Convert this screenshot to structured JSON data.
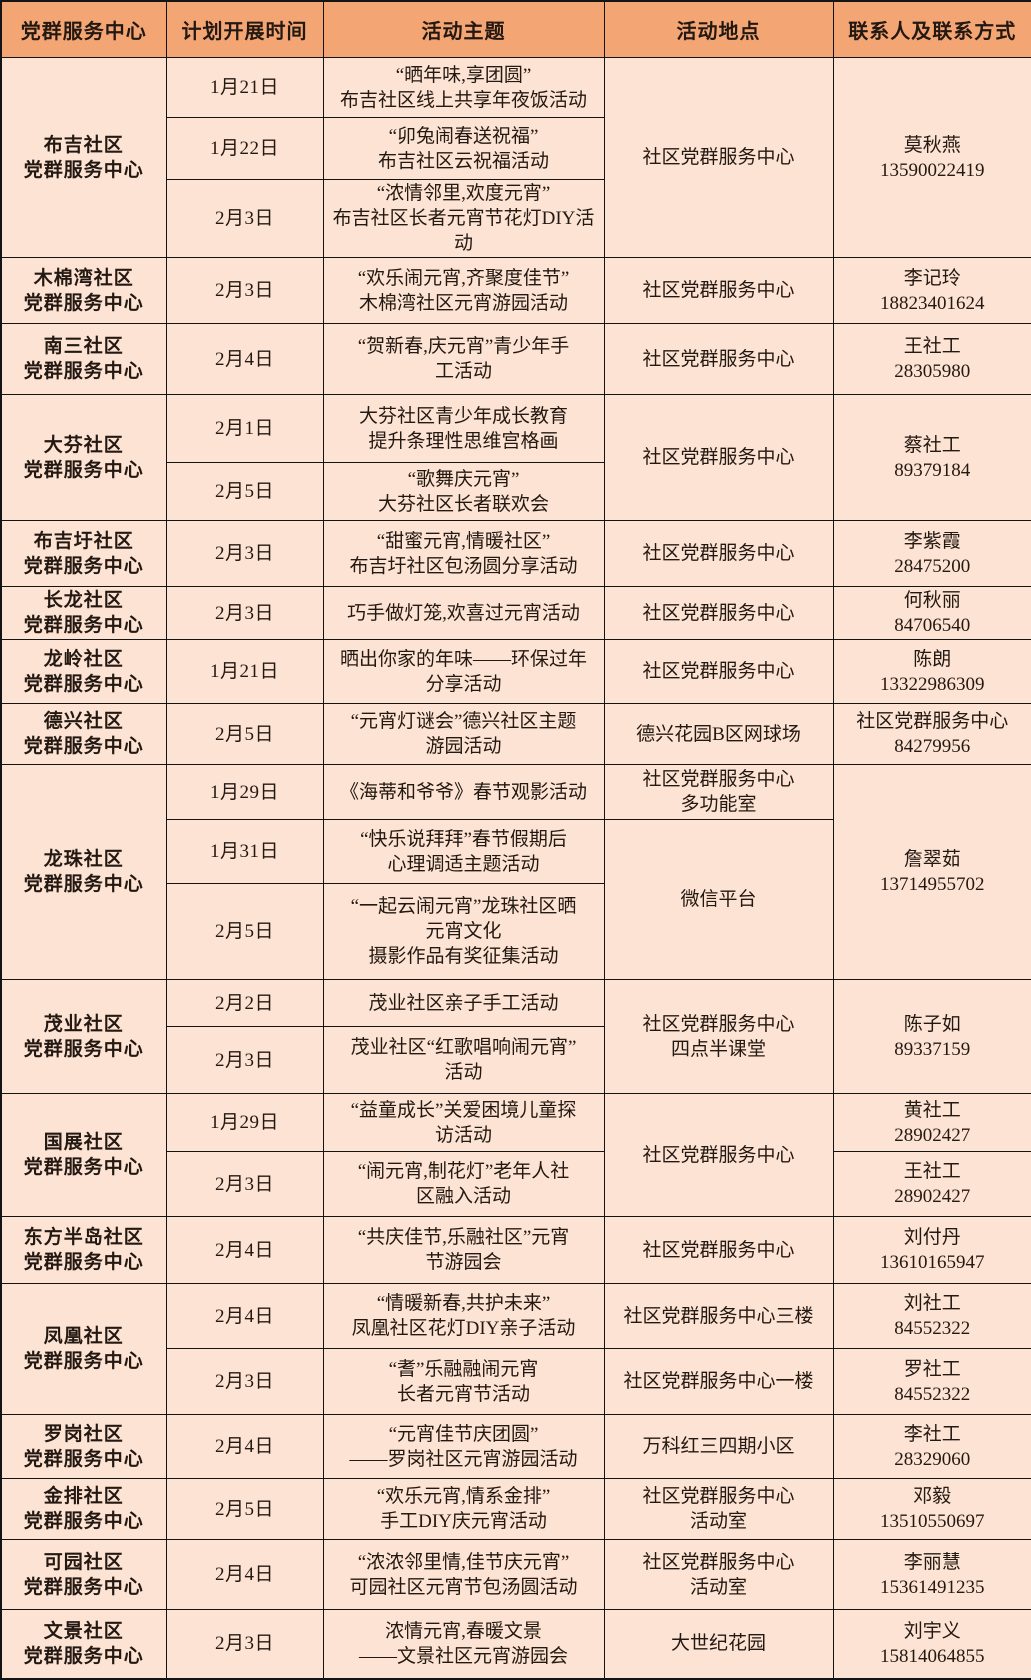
{
  "colors": {
    "header_bg": "#f3a673",
    "body_bg": "#fce3d3",
    "text": "#241812",
    "border": "#141414"
  },
  "table": {
    "header": [
      "党群服务中心",
      "计划开展时间",
      "活动主题",
      "活动地点",
      "联系人及联系方式"
    ],
    "rows": [
      [
        {
          "n": "center",
          "rs": 3,
          "t": "布吉社区\n党群服务中心"
        },
        {
          "n": "date",
          "t": "1月21日"
        },
        {
          "n": "theme",
          "t": "“晒年味,享团圆”\n布吉社区线上共享年夜饭活动"
        },
        {
          "n": "location",
          "rs": 3,
          "t": "社区党群服务中心"
        },
        {
          "n": "contact",
          "rs": 3,
          "t": "莫秋燕\n13590022419"
        }
      ],
      [
        {
          "n": "date",
          "t": "1月22日"
        },
        {
          "n": "theme",
          "t": "“卯兔闹春送祝福”\n布吉社区云祝福活动"
        }
      ],
      [
        {
          "n": "date",
          "t": "2月3日"
        },
        {
          "n": "theme",
          "t": "“浓情邻里,欢度元宵”\n布吉社区长者元宵节花灯DIY活\n动"
        }
      ],
      [
        {
          "n": "center",
          "t": "木棉湾社区\n党群服务中心"
        },
        {
          "n": "date",
          "t": "2月3日"
        },
        {
          "n": "theme",
          "t": "“欢乐闹元宵,齐聚度佳节”\n木棉湾社区元宵游园活动"
        },
        {
          "n": "location",
          "t": "社区党群服务中心"
        },
        {
          "n": "contact",
          "t": "李记玲\n18823401624"
        }
      ],
      [
        {
          "n": "center",
          "t": "南三社区\n党群服务中心"
        },
        {
          "n": "date",
          "t": "2月4日"
        },
        {
          "n": "theme",
          "t": "“贺新春,庆元宵”青少年手\n工活动"
        },
        {
          "n": "location",
          "t": "社区党群服务中心"
        },
        {
          "n": "contact",
          "t": "王社工\n28305980"
        }
      ],
      [
        {
          "n": "center",
          "rs": 2,
          "t": "大芬社区\n党群服务中心"
        },
        {
          "n": "date",
          "t": "2月1日"
        },
        {
          "n": "theme",
          "t": "大芬社区青少年成长教育\n提升条理性思维宫格画"
        },
        {
          "n": "location",
          "rs": 2,
          "t": "社区党群服务中心"
        },
        {
          "n": "contact",
          "rs": 2,
          "t": "蔡社工\n89379184"
        }
      ],
      [
        {
          "n": "date",
          "t": "2月5日"
        },
        {
          "n": "theme",
          "t": "“歌舞庆元宵”\n大芬社区长者联欢会"
        }
      ],
      [
        {
          "n": "center",
          "t": "布吉圩社区\n党群服务中心"
        },
        {
          "n": "date",
          "t": "2月3日"
        },
        {
          "n": "theme",
          "t": "“甜蜜元宵,情暖社区”\n布吉圩社区包汤圆分享活动"
        },
        {
          "n": "location",
          "t": "社区党群服务中心"
        },
        {
          "n": "contact",
          "t": "李紫霞\n28475200"
        }
      ],
      [
        {
          "n": "center",
          "t": "长龙社区\n党群服务中心"
        },
        {
          "n": "date",
          "t": "2月3日"
        },
        {
          "n": "theme",
          "t": "巧手做灯笼,欢喜过元宵活动"
        },
        {
          "n": "location",
          "t": "社区党群服务中心"
        },
        {
          "n": "contact",
          "t": "何秋丽\n84706540"
        }
      ],
      [
        {
          "n": "center",
          "t": "龙岭社区\n党群服务中心"
        },
        {
          "n": "date",
          "t": "1月21日"
        },
        {
          "n": "theme",
          "t": "晒出你家的年味——环保过年\n分享活动"
        },
        {
          "n": "location",
          "t": "社区党群服务中心"
        },
        {
          "n": "contact",
          "t": "陈朗\n13322986309"
        }
      ],
      [
        {
          "n": "center",
          "t": "德兴社区\n党群服务中心"
        },
        {
          "n": "date",
          "t": "2月5日"
        },
        {
          "n": "theme",
          "t": "“元宵灯谜会”德兴社区主题\n游园活动"
        },
        {
          "n": "location",
          "t": "德兴花园B区网球场"
        },
        {
          "n": "contact",
          "t": "社区党群服务中心\n84279956"
        }
      ],
      [
        {
          "n": "center",
          "rs": 3,
          "t": "龙珠社区\n党群服务中心"
        },
        {
          "n": "date",
          "t": "1月29日"
        },
        {
          "n": "theme",
          "t": "《海蒂和爷爷》春节观影活动"
        },
        {
          "n": "location",
          "t": "社区党群服务中心\n多功能室"
        },
        {
          "n": "contact",
          "rs": 3,
          "t": "詹翠茹\n13714955702"
        }
      ],
      [
        {
          "n": "date",
          "t": "1月31日"
        },
        {
          "n": "theme",
          "t": "“快乐说拜拜”春节假期后\n心理调适主题活动"
        },
        {
          "n": "location",
          "rs": 2,
          "t": "微信平台"
        }
      ],
      [
        {
          "n": "date",
          "t": "2月5日"
        },
        {
          "n": "theme",
          "t": "“一起云闹元宵”龙珠社区晒\n元宵文化\n摄影作品有奖征集活动"
        }
      ],
      [
        {
          "n": "center",
          "rs": 2,
          "t": "茂业社区\n党群服务中心"
        },
        {
          "n": "date",
          "t": "2月2日"
        },
        {
          "n": "theme",
          "t": "茂业社区亲子手工活动"
        },
        {
          "n": "location",
          "rs": 2,
          "t": "社区党群服务中心\n四点半课堂"
        },
        {
          "n": "contact",
          "rs": 2,
          "t": "陈子如\n89337159"
        }
      ],
      [
        {
          "n": "date",
          "t": "2月3日"
        },
        {
          "n": "theme",
          "t": "茂业社区“红歌唱响闹元宵”\n活动"
        }
      ],
      [
        {
          "n": "center",
          "rs": 2,
          "t": "国展社区\n党群服务中心"
        },
        {
          "n": "date",
          "t": "1月29日"
        },
        {
          "n": "theme",
          "t": "“益童成长”关爱困境儿童探\n访活动"
        },
        {
          "n": "location",
          "rs": 2,
          "t": "社区党群服务中心"
        },
        {
          "n": "contact",
          "t": "黄社工\n28902427"
        }
      ],
      [
        {
          "n": "date",
          "t": "2月3日"
        },
        {
          "n": "theme",
          "t": "“闹元宵,制花灯”老年人社\n区融入活动"
        },
        {
          "n": "contact",
          "t": "王社工\n28902427"
        }
      ],
      [
        {
          "n": "center",
          "t": "东方半岛社区\n党群服务中心"
        },
        {
          "n": "date",
          "t": "2月4日"
        },
        {
          "n": "theme",
          "t": "“共庆佳节,乐融社区”元宵\n节游园会"
        },
        {
          "n": "location",
          "t": "社区党群服务中心"
        },
        {
          "n": "contact",
          "t": "刘付丹\n13610165947"
        }
      ],
      [
        {
          "n": "center",
          "rs": 2,
          "t": "凤凰社区\n党群服务中心"
        },
        {
          "n": "date",
          "t": "2月4日"
        },
        {
          "n": "theme",
          "t": "“情暖新春,共护未来”\n凤凰社区花灯DIY亲子活动"
        },
        {
          "n": "location",
          "t": "社区党群服务中心三楼"
        },
        {
          "n": "contact",
          "t": "刘社工\n84552322"
        }
      ],
      [
        {
          "n": "date",
          "t": "2月3日"
        },
        {
          "n": "theme",
          "t": "“耆”乐融融闹元宵\n长者元宵节活动"
        },
        {
          "n": "location",
          "t": "社区党群服务中心一楼"
        },
        {
          "n": "contact",
          "t": "罗社工\n84552322"
        }
      ],
      [
        {
          "n": "center",
          "t": "罗岗社区\n党群服务中心"
        },
        {
          "n": "date",
          "t": "2月4日"
        },
        {
          "n": "theme",
          "t": "“元宵佳节庆团圆”\n——罗岗社区元宵游园活动"
        },
        {
          "n": "location",
          "t": "万科红三四期小区"
        },
        {
          "n": "contact",
          "t": "李社工\n28329060"
        }
      ],
      [
        {
          "n": "center",
          "t": "金排社区\n党群服务中心"
        },
        {
          "n": "date",
          "t": "2月5日"
        },
        {
          "n": "theme",
          "t": "“欢乐元宵,情系金排”\n手工DIY庆元宵活动"
        },
        {
          "n": "location",
          "t": "社区党群服务中心\n活动室"
        },
        {
          "n": "contact",
          "t": "邓毅\n13510550697"
        }
      ],
      [
        {
          "n": "center",
          "t": "可园社区\n党群服务中心"
        },
        {
          "n": "date",
          "t": "2月4日"
        },
        {
          "n": "theme",
          "t": "“浓浓邻里情,佳节庆元宵”\n可园社区元宵节包汤圆活动"
        },
        {
          "n": "location",
          "t": "社区党群服务中心\n活动室"
        },
        {
          "n": "contact",
          "t": "李丽慧\n15361491235"
        }
      ],
      [
        {
          "n": "center",
          "t": "文景社区\n党群服务中心"
        },
        {
          "n": "date",
          "t": "2月3日"
        },
        {
          "n": "theme",
          "t": "浓情元宵,春暖文景\n——文景社区元宵游园会"
        },
        {
          "n": "location",
          "t": "大世纪花园"
        },
        {
          "n": "contact",
          "t": "刘宇义\n15814064855"
        }
      ]
    ]
  }
}
